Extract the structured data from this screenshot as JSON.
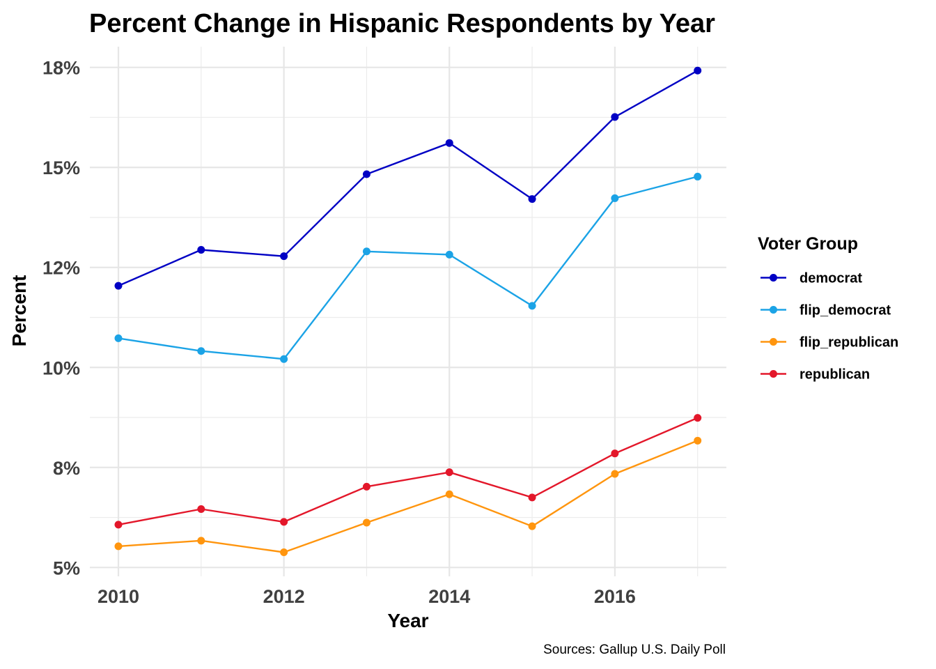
{
  "chart_data": {
    "type": "line",
    "title": "Percent Change in Hispanic Respondents by Year",
    "xlabel": "Year",
    "ylabel": "Percent",
    "caption": "Sources: Gallup U.S. Daily Poll",
    "x": [
      2010,
      2011,
      2012,
      2013,
      2014,
      2015,
      2016,
      2017
    ],
    "xlim": [
      2009.65,
      2017.35
    ],
    "x_ticks": [
      2010,
      2012,
      2014,
      2016
    ],
    "x_tick_labels": [
      "2010",
      "2012",
      "2014",
      "2016"
    ],
    "ylim": [
      4.8,
      18.0
    ],
    "y_ticks": [
      5,
      7.5,
      10,
      12.5,
      15,
      17.5
    ],
    "y_tick_labels": [
      "5%",
      "8%",
      "10%",
      "12%",
      "15%",
      "18%"
    ],
    "grid": true,
    "legend": {
      "title": "Voter Group",
      "placement": "right"
    },
    "series": [
      {
        "name": "democrat",
        "color": "#0000c4",
        "values": [
          12.04,
          12.94,
          12.78,
          14.83,
          15.61,
          14.21,
          16.26,
          17.42
        ]
      },
      {
        "name": "flip_democrat",
        "color": "#1ba3e6",
        "values": [
          10.73,
          10.41,
          10.21,
          12.9,
          12.82,
          11.54,
          14.23,
          14.77
        ]
      },
      {
        "name": "flip_republican",
        "color": "#ff950e",
        "values": [
          5.53,
          5.67,
          5.38,
          6.12,
          6.83,
          6.03,
          7.34,
          8.17
        ]
      },
      {
        "name": "republican",
        "color": "#e3172a",
        "values": [
          6.07,
          6.46,
          6.14,
          7.02,
          7.38,
          6.75,
          7.85,
          8.74
        ]
      }
    ]
  }
}
